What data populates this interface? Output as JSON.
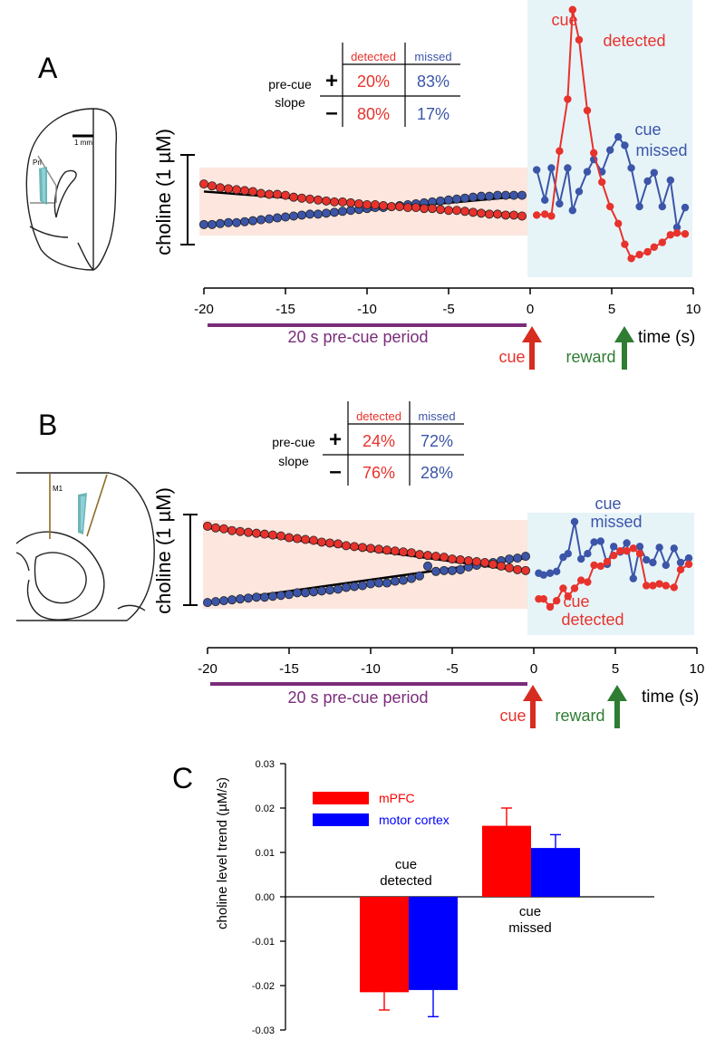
{
  "panel_a": {
    "label": "A",
    "brain_region": "Prl",
    "scale_bar": "1 mm",
    "ylabel": "choline (1 µM)",
    "table": {
      "col_detected": "detected",
      "col_missed": "missed",
      "row_label_1": "pre-cue",
      "row_label_2": "slope",
      "plus": "+",
      "minus": "–",
      "plus_detected": "20%",
      "plus_missed": "83%",
      "minus_detected": "80%",
      "minus_missed": "17%"
    },
    "annot_detected": [
      "cue",
      "detected"
    ],
    "annot_missed": [
      "cue",
      "missed"
    ],
    "period_label": "20 s pre-cue period",
    "cue_label": "cue",
    "reward_label": "reward",
    "xlabel": "time (s)"
  },
  "panel_b": {
    "label": "B",
    "brain_region": "M1",
    "ylabel": "choline (1 µM)",
    "table": {
      "col_detected": "detected",
      "col_missed": "missed",
      "row_label_1": "pre-cue",
      "row_label_2": "slope",
      "plus": "+",
      "minus": "–",
      "plus_detected": "24%",
      "plus_missed": "72%",
      "minus_detected": "76%",
      "minus_missed": "28%"
    },
    "annot_detected": [
      "cue",
      "detected"
    ],
    "annot_missed": [
      "cue",
      "missed"
    ],
    "period_label": "20 s pre-cue period",
    "cue_label": "cue",
    "reward_label": "reward",
    "xlabel": "time (s)"
  },
  "panel_c": {
    "label": "C"
  },
  "colors": {
    "detected": "#e8322c",
    "missed": "#3c55a8",
    "mpfc": "#ff0000",
    "motor": "#0000ff",
    "purple": "#7a2c7a",
    "green": "#2e7d32",
    "fill_pre": "#fce6de",
    "fill_post": "#e6f4f8"
  },
  "chart_data": [
    {
      "panel": "A",
      "type": "line",
      "title": "",
      "xlabel": "time (s)",
      "ylabel": "choline (1 µM)",
      "xlim": [
        -20,
        10
      ],
      "xticks": [
        -20,
        -15,
        -10,
        -5,
        0,
        5,
        10
      ],
      "events": [
        {
          "name": "cue",
          "t": 0
        },
        {
          "name": "reward",
          "t": 5.8
        }
      ],
      "series": [
        {
          "name": "cue detected",
          "x": [
            -20,
            -19.5,
            -19,
            -18.5,
            -18,
            -17.5,
            -17,
            -16.5,
            -16,
            -15.5,
            -15,
            -14.5,
            -14,
            -13.5,
            -13,
            -12.5,
            -12,
            -11.5,
            -11,
            -10.5,
            -10,
            -9.5,
            -9,
            -8.5,
            -8,
            -7.5,
            -7,
            -6.5,
            -6,
            -5.5,
            -5,
            -4.5,
            -4,
            -3.5,
            -3,
            -2.5,
            -2,
            -1.5,
            -1,
            -0.5,
            0.4,
            0.9,
            1.3,
            1.8,
            2.3,
            2.6,
            3.0,
            3.5,
            3.9,
            4.4,
            4.9,
            5.4,
            5.8,
            6.2,
            6.7,
            7.2,
            7.6,
            8.1,
            8.6,
            9.0,
            9.5
          ],
          "values": [
            0.72,
            0.7,
            0.68,
            0.67,
            0.66,
            0.65,
            0.64,
            0.62,
            0.61,
            0.61,
            0.6,
            0.58,
            0.57,
            0.56,
            0.55,
            0.54,
            0.53,
            0.53,
            0.52,
            0.51,
            0.5,
            0.5,
            0.49,
            0.48,
            0.48,
            0.47,
            0.47,
            0.46,
            0.46,
            0.45,
            0.44,
            0.44,
            0.43,
            0.42,
            0.41,
            0.4,
            0.4,
            0.39,
            0.39,
            0.38,
            0.39,
            0.4,
            0.38,
            1.07,
            1.62,
            2.57,
            2.25,
            1.5,
            1.05,
            0.74,
            0.48,
            0.3,
            0.08,
            -0.07,
            -0.03,
            0.0,
            0.05,
            0.1,
            0.18,
            0.2,
            0.19
          ]
        },
        {
          "name": "cue missed",
          "x": [
            -20,
            -19.5,
            -19,
            -18.5,
            -18,
            -17.5,
            -17,
            -16.5,
            -16,
            -15.5,
            -15,
            -14.5,
            -14,
            -13.5,
            -13,
            -12.5,
            -12,
            -11.5,
            -11,
            -10.5,
            -10,
            -9.5,
            -9,
            -8.5,
            -8,
            -7.5,
            -7,
            -6.5,
            -6,
            -5.5,
            -5,
            -4.5,
            -4,
            -3.5,
            -3,
            -2.5,
            -2,
            -1.5,
            -1,
            -0.5,
            0.4,
            0.9,
            1.3,
            1.8,
            2.3,
            2.6,
            3.0,
            3.5,
            3.9,
            4.4,
            4.9,
            5.4,
            5.8,
            6.2,
            6.7,
            7.2,
            7.6,
            8.1,
            8.6,
            9.0,
            9.5
          ],
          "values": [
            0.29,
            0.29,
            0.3,
            0.31,
            0.31,
            0.32,
            0.33,
            0.34,
            0.35,
            0.36,
            0.37,
            0.38,
            0.39,
            0.4,
            0.4,
            0.41,
            0.42,
            0.43,
            0.44,
            0.45,
            0.46,
            0.47,
            0.47,
            0.48,
            0.49,
            0.5,
            0.51,
            0.52,
            0.53,
            0.54,
            0.55,
            0.56,
            0.57,
            0.58,
            0.59,
            0.59,
            0.6,
            0.6,
            0.6,
            0.6,
            0.87,
            0.55,
            0.89,
            0.51,
            0.89,
            0.44,
            0.64,
            0.85,
            0.98,
            0.85,
            1.08,
            1.22,
            1.13,
            0.89,
            0.48,
            0.75,
            0.84,
            0.48,
            0.76,
            0.26,
            0.47
          ]
        }
      ],
      "trend_lines": [
        {
          "name": "cue detected fit",
          "x": [
            -20,
            -0.5
          ],
          "values": [
            0.64,
            0.39
          ]
        },
        {
          "name": "cue missed fit",
          "x": [
            -20,
            -0.5
          ],
          "values": [
            0.29,
            0.59
          ]
        }
      ]
    },
    {
      "panel": "B",
      "type": "line",
      "title": "",
      "xlabel": "time (s)",
      "ylabel": "choline (1 µM)",
      "xlim": [
        -20,
        10
      ],
      "xticks": [
        -20,
        -15,
        -10,
        -5,
        0,
        5,
        10
      ],
      "events": [
        {
          "name": "cue",
          "t": 0
        },
        {
          "name": "reward",
          "t": 5
        }
      ],
      "series": [
        {
          "name": "cue detected",
          "x": [
            -20,
            -19.5,
            -19,
            -18.5,
            -18,
            -17.5,
            -17,
            -16.5,
            -16,
            -15.5,
            -15,
            -14.5,
            -14,
            -13.5,
            -13,
            -12.5,
            -12,
            -11.5,
            -11,
            -10.5,
            -10,
            -9.5,
            -9,
            -8.5,
            -8,
            -7.5,
            -7,
            -6.5,
            -6,
            -5.5,
            -5,
            -4.5,
            -4,
            -3.5,
            -3,
            -2.5,
            -2,
            -1.5,
            -1,
            -0.5,
            0.3,
            0.6,
            1.0,
            1.4,
            1.8,
            2.1,
            2.5,
            2.9,
            3.3,
            3.7,
            4.1,
            4.5,
            4.9,
            5.3,
            5.7,
            6.1,
            6.5,
            6.9,
            7.3,
            7.7,
            8.1,
            8.6,
            9.0,
            9.5
          ],
          "values": [
            0.91,
            0.89,
            0.88,
            0.86,
            0.85,
            0.84,
            0.83,
            0.82,
            0.81,
            0.8,
            0.78,
            0.77,
            0.76,
            0.75,
            0.73,
            0.72,
            0.71,
            0.69,
            0.68,
            0.67,
            0.66,
            0.65,
            0.64,
            0.63,
            0.62,
            0.61,
            0.59,
            0.58,
            0.57,
            0.56,
            0.54,
            0.53,
            0.52,
            0.51,
            0.5,
            0.48,
            0.46,
            0.44,
            0.42,
            0.41,
            0.09,
            0.09,
            0.0,
            0.07,
            0.21,
            0.12,
            0.21,
            0.3,
            0.28,
            0.47,
            0.46,
            0.51,
            0.58,
            0.63,
            0.63,
            0.66,
            0.6,
            0.24,
            0.24,
            0.26,
            0.24,
            0.22,
            0.42,
            0.48
          ]
        },
        {
          "name": "cue missed",
          "x": [
            -20,
            -19.5,
            -19,
            -18.5,
            -18,
            -17.5,
            -17,
            -16.5,
            -16,
            -15.5,
            -15,
            -14.5,
            -14,
            -13.5,
            -13,
            -12.5,
            -12,
            -11.5,
            -11,
            -10.5,
            -10,
            -9.5,
            -9,
            -8.5,
            -8,
            -7.5,
            -7,
            -6.5,
            -6,
            -5.5,
            -5,
            -4.5,
            -4,
            -3.5,
            -3,
            -2.5,
            -2,
            -1.5,
            -1,
            -0.5,
            0.3,
            0.6,
            1.0,
            1.4,
            1.8,
            2.1,
            2.5,
            2.9,
            3.3,
            3.7,
            4.1,
            4.5,
            4.9,
            5.3,
            5.7,
            6.1,
            6.5,
            6.9,
            7.3,
            7.7,
            8.1,
            8.6,
            9.0,
            9.5
          ],
          "values": [
            0.05,
            0.06,
            0.07,
            0.08,
            0.09,
            0.1,
            0.11,
            0.11,
            0.12,
            0.13,
            0.14,
            0.16,
            0.16,
            0.17,
            0.18,
            0.19,
            0.2,
            0.22,
            0.23,
            0.24,
            0.26,
            0.27,
            0.27,
            0.29,
            0.3,
            0.32,
            0.35,
            0.46,
            0.4,
            0.41,
            0.41,
            0.42,
            0.45,
            0.47,
            0.49,
            0.5,
            0.52,
            0.54,
            0.55,
            0.57,
            0.38,
            0.36,
            0.38,
            0.4,
            0.56,
            0.6,
            0.96,
            0.54,
            0.6,
            0.73,
            0.74,
            0.48,
            0.68,
            0.62,
            0.72,
            0.32,
            0.68,
            0.53,
            0.5,
            0.67,
            0.47,
            0.66,
            0.5,
            0.55
          ]
        }
      ],
      "trend_lines": [
        {
          "name": "cue detected fit",
          "x": [
            -20,
            -0.5
          ],
          "values": [
            0.89,
            0.4
          ]
        },
        {
          "name": "cue missed fit",
          "x": [
            -20,
            -0.5
          ],
          "values": [
            0.05,
            0.55
          ]
        }
      ]
    },
    {
      "panel": "C",
      "type": "bar",
      "title": "",
      "xlabel": "",
      "ylabel": "choline level trend (µM/s)",
      "ylim": [
        -0.03,
        0.03
      ],
      "yticks": [
        -0.03,
        -0.02,
        -0.01,
        0.0,
        0.01,
        0.02,
        0.03
      ],
      "ytick_labels": [
        "-0.03",
        "-0.02",
        "-0.01",
        "0.00",
        "0.01",
        "0.02",
        "0.03"
      ],
      "categories": [
        [
          "cue",
          "detected"
        ],
        [
          "cue",
          "missed"
        ]
      ],
      "series": [
        {
          "name": "mPFC",
          "values": [
            -0.0215,
            0.016
          ],
          "errors": [
            0.004,
            0.004
          ]
        },
        {
          "name": "motor cortex",
          "values": [
            -0.021,
            0.011
          ],
          "errors": [
            0.006,
            0.003
          ]
        }
      ],
      "legend": "top-left"
    }
  ]
}
